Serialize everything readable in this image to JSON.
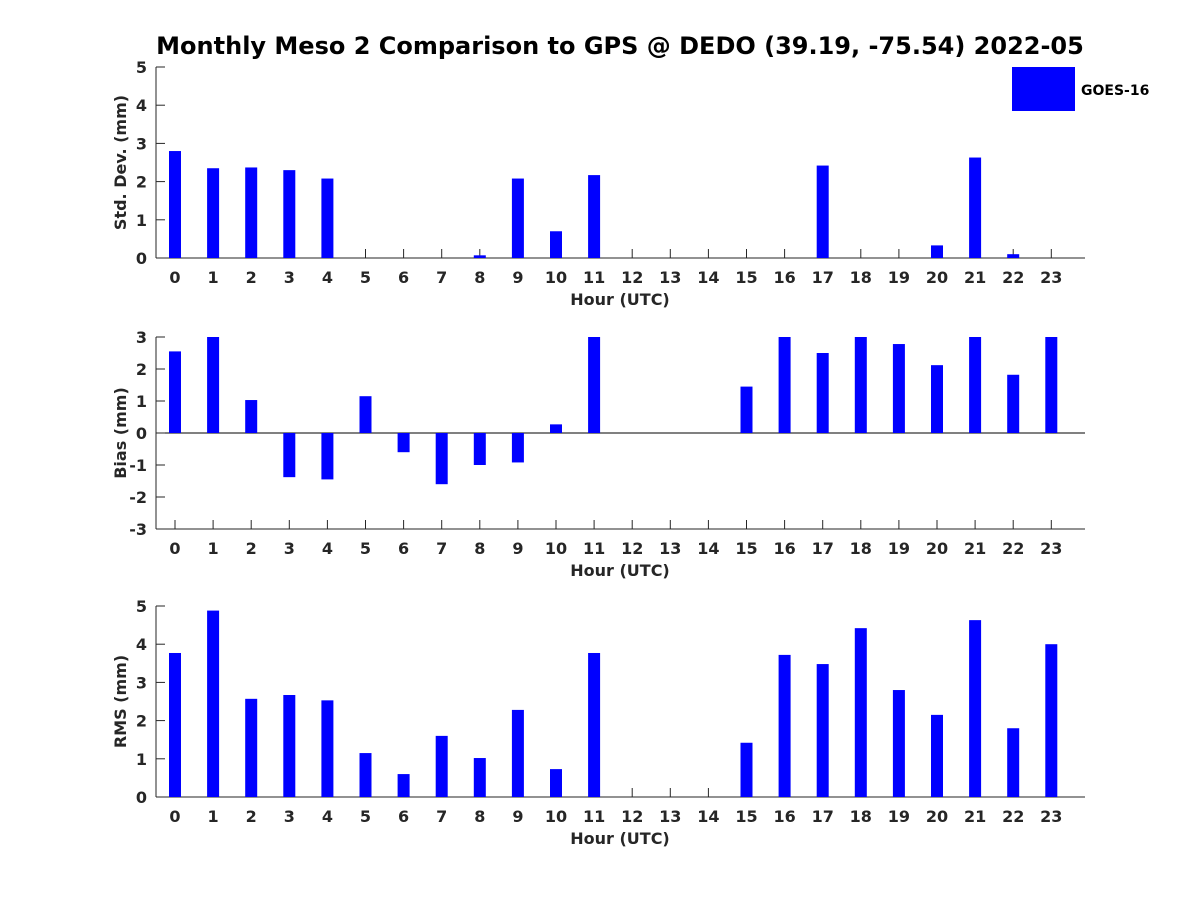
{
  "title": "Monthly Meso 2 Comparison to GPS @ DEDO (39.19, -75.54) 2022-05",
  "legend": {
    "label": "GOES-16",
    "color": "#0000ff",
    "placement": "top-right"
  },
  "colors": {
    "bar": "#0000ff",
    "axis": "#262626",
    "zero_line": "#000000"
  },
  "chart_data": [
    {
      "type": "bar",
      "xlabel": "Hour (UTC)",
      "ylabel": "Std. Dev. (mm)",
      "ylim": [
        0,
        5
      ],
      "yticks": [
        "0",
        "1",
        "2",
        "3",
        "4",
        "5"
      ],
      "categories": [
        "0",
        "1",
        "2",
        "3",
        "4",
        "5",
        "6",
        "7",
        "8",
        "9",
        "10",
        "11",
        "12",
        "13",
        "14",
        "15",
        "16",
        "17",
        "18",
        "19",
        "20",
        "21",
        "22",
        "23"
      ],
      "series": [
        {
          "name": "GOES-16",
          "values": [
            2.8,
            2.35,
            2.37,
            2.3,
            2.08,
            0,
            0,
            0,
            0.07,
            2.08,
            0.7,
            2.17,
            0,
            0,
            0,
            0,
            0,
            2.42,
            0,
            0,
            0.33,
            2.63,
            0.1,
            0
          ]
        }
      ],
      "grid": false
    },
    {
      "type": "bar",
      "xlabel": "Hour (UTC)",
      "ylabel": "Bias (mm)",
      "ylim": [
        -3,
        3
      ],
      "yticks": [
        "-3",
        "-2",
        "-1",
        "0",
        "1",
        "2",
        "3"
      ],
      "categories": [
        "0",
        "1",
        "2",
        "3",
        "4",
        "5",
        "6",
        "7",
        "8",
        "9",
        "10",
        "11",
        "12",
        "13",
        "14",
        "15",
        "16",
        "17",
        "18",
        "19",
        "20",
        "21",
        "22",
        "23"
      ],
      "series": [
        {
          "name": "GOES-16",
          "values": [
            2.55,
            3.0,
            1.03,
            -1.38,
            -1.45,
            1.15,
            -0.6,
            -1.6,
            -1.0,
            -0.92,
            0.27,
            3.0,
            0,
            0,
            0,
            1.45,
            3.0,
            2.5,
            3.0,
            2.78,
            2.12,
            3.0,
            1.82,
            3.0
          ]
        }
      ],
      "grid": false
    },
    {
      "type": "bar",
      "xlabel": "Hour (UTC)",
      "ylabel": "RMS (mm)",
      "ylim": [
        0,
        5
      ],
      "yticks": [
        "0",
        "1",
        "2",
        "3",
        "4",
        "5"
      ],
      "categories": [
        "0",
        "1",
        "2",
        "3",
        "4",
        "5",
        "6",
        "7",
        "8",
        "9",
        "10",
        "11",
        "12",
        "13",
        "14",
        "15",
        "16",
        "17",
        "18",
        "19",
        "20",
        "21",
        "22",
        "23"
      ],
      "series": [
        {
          "name": "GOES-16",
          "values": [
            3.77,
            4.88,
            2.57,
            2.67,
            2.53,
            1.15,
            0.6,
            1.6,
            1.02,
            2.28,
            0.73,
            3.77,
            0,
            0,
            0,
            1.42,
            3.72,
            3.48,
            4.42,
            2.8,
            2.15,
            4.63,
            1.8,
            4.0
          ]
        }
      ],
      "grid": false
    }
  ]
}
